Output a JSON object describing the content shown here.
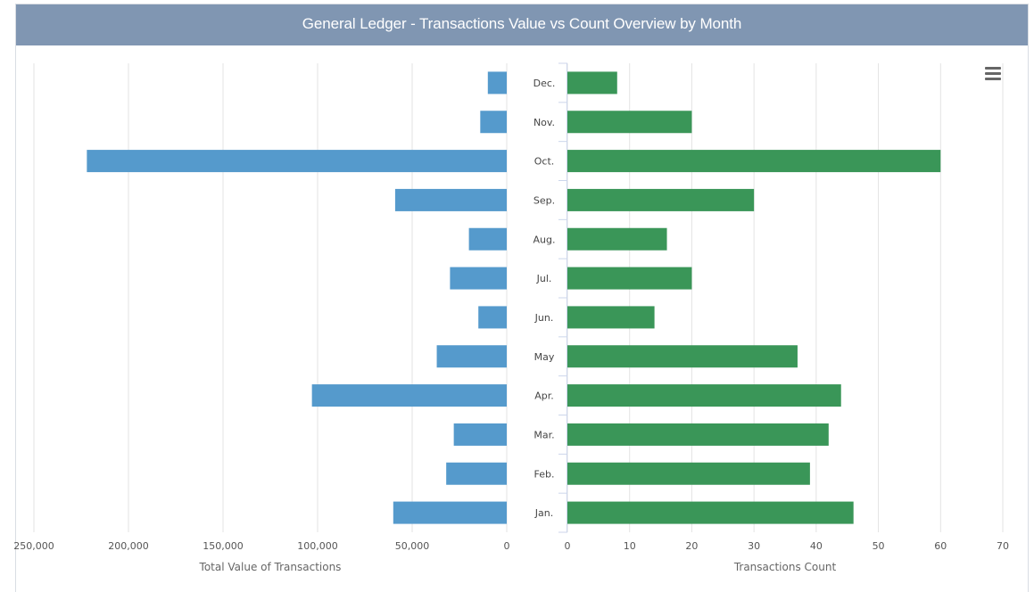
{
  "title": "General Ledger - Transactions Value vs Count Overview by Month",
  "menu_icon": "hamburger-menu-icon",
  "colors": {
    "header_bg": "#8096b2",
    "value_bar": "#559acc",
    "count_bar": "#3a9658"
  },
  "chart_data": [
    {
      "type": "bar",
      "orientation": "horizontal",
      "reversed": true,
      "categories": [
        "Dec.",
        "Nov.",
        "Oct.",
        "Sep.",
        "Aug.",
        "Jul.",
        "Jun.",
        "May",
        "Apr.",
        "Mar.",
        "Feb.",
        "Jan."
      ],
      "values": [
        10000,
        14000,
        222000,
        59000,
        20000,
        30000,
        15000,
        37000,
        103000,
        28000,
        32000,
        60000
      ],
      "xlabel": "Total Value of Transactions",
      "xlim": [
        0,
        250000
      ],
      "xticks": [
        250000,
        200000,
        150000,
        100000,
        50000,
        0
      ],
      "xtick_labels": [
        "250,000",
        "200,000",
        "150,000",
        "100,000",
        "50,000",
        "0"
      ],
      "grid": true
    },
    {
      "type": "bar",
      "orientation": "horizontal",
      "categories": [
        "Dec.",
        "Nov.",
        "Oct.",
        "Sep.",
        "Aug.",
        "Jul.",
        "Jun.",
        "May",
        "Apr.",
        "Mar.",
        "Feb.",
        "Jan."
      ],
      "values": [
        8,
        20,
        60,
        30,
        16,
        20,
        14,
        37,
        44,
        42,
        39,
        46
      ],
      "xlabel": "Transactions Count",
      "xlim": [
        0,
        70
      ],
      "xticks": [
        0,
        10,
        20,
        30,
        40,
        50,
        60,
        70
      ],
      "xtick_labels": [
        "0",
        "10",
        "20",
        "30",
        "40",
        "50",
        "60",
        "70"
      ],
      "grid": true
    }
  ]
}
